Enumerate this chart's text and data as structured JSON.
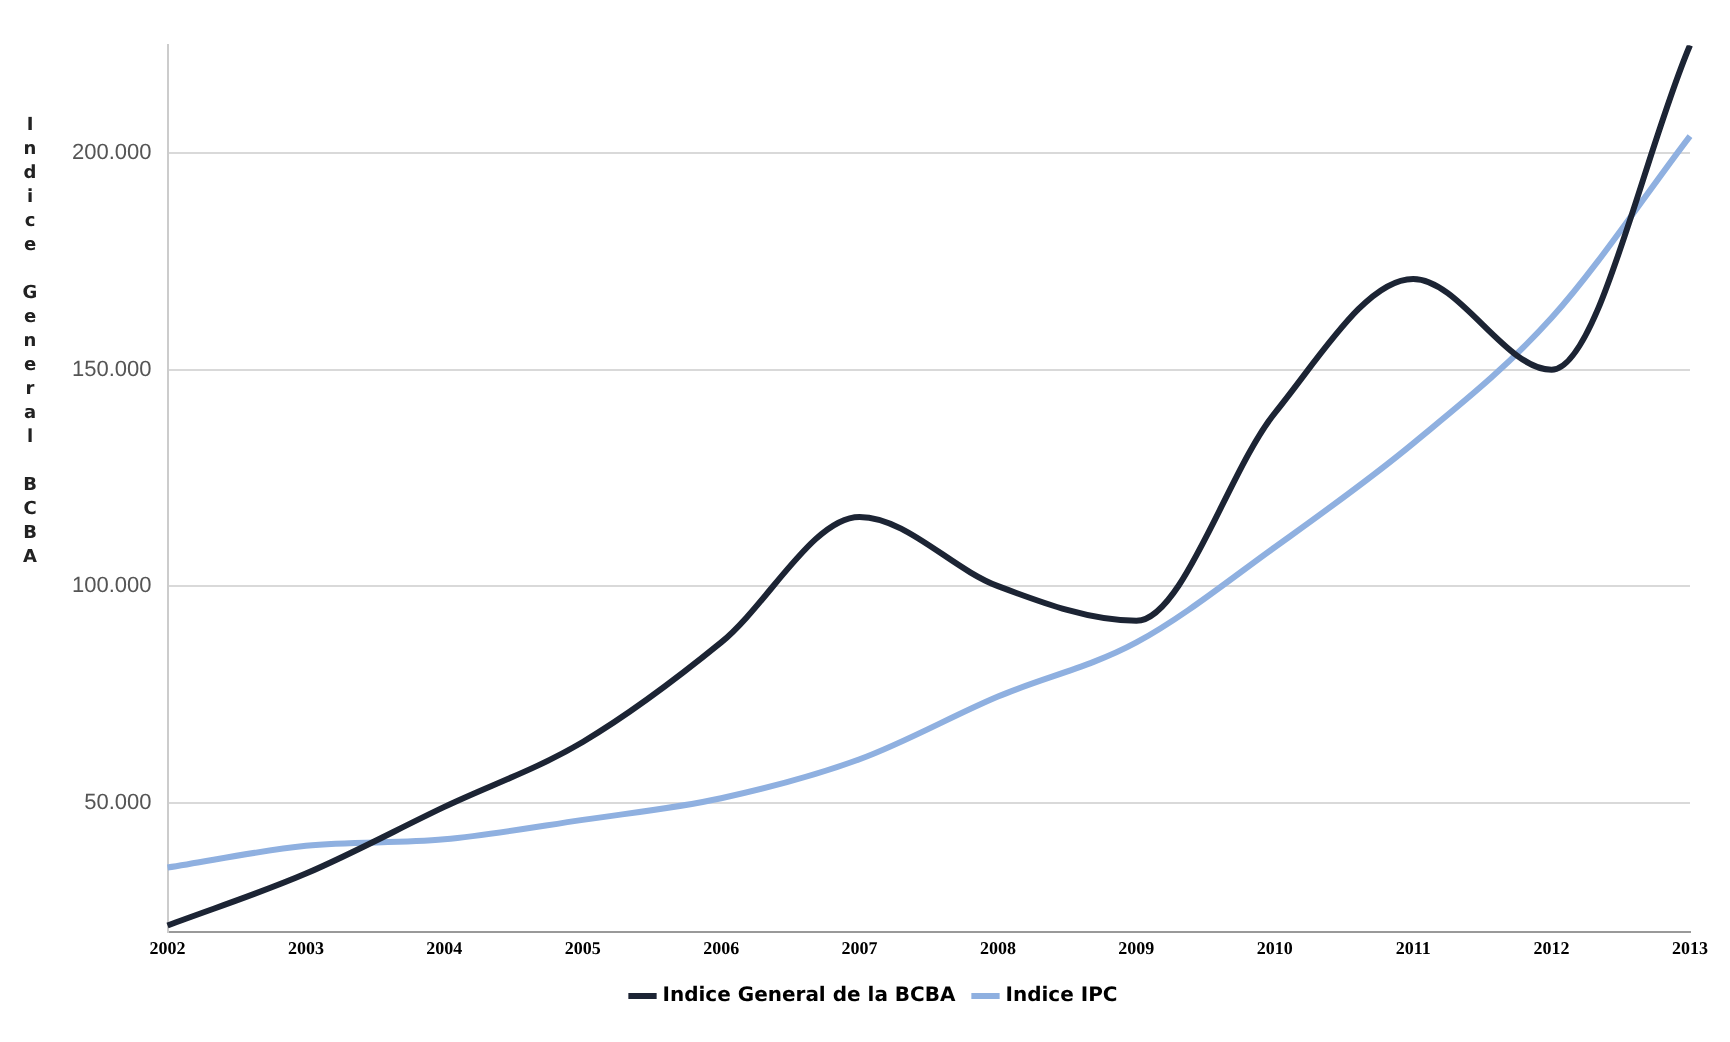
{
  "chart_data": {
    "type": "line",
    "ylabel": "Indice General BCBA",
    "categories": [
      "2002",
      "2003",
      "2004",
      "2005",
      "2006",
      "2007",
      "2008",
      "2009",
      "2010",
      "2011",
      "2012",
      "2013"
    ],
    "series": [
      {
        "name": "Indice General de la BCBA",
        "color": "#1c2434",
        "values": [
          21600,
          33600,
          49000,
          64000,
          87000,
          116000,
          100000,
          92000,
          140000,
          171000,
          150000,
          225000
        ]
      },
      {
        "name": "Indice IPC",
        "color": "#8fb0e0",
        "values": [
          35000,
          40000,
          41500,
          46000,
          51000,
          60000,
          74500,
          87000,
          109000,
          133000,
          162000,
          204000
        ]
      }
    ],
    "ylim": [
      20000,
      225000
    ],
    "yticks": [
      {
        "value": 50000,
        "label": "50.000"
      },
      {
        "value": 100000,
        "label": "100.000"
      },
      {
        "value": 150000,
        "label": "150.000"
      },
      {
        "value": 200000,
        "label": "200.000"
      }
    ],
    "grid": "y",
    "legend": "bottom",
    "line_style": "solid",
    "marker": "none"
  }
}
